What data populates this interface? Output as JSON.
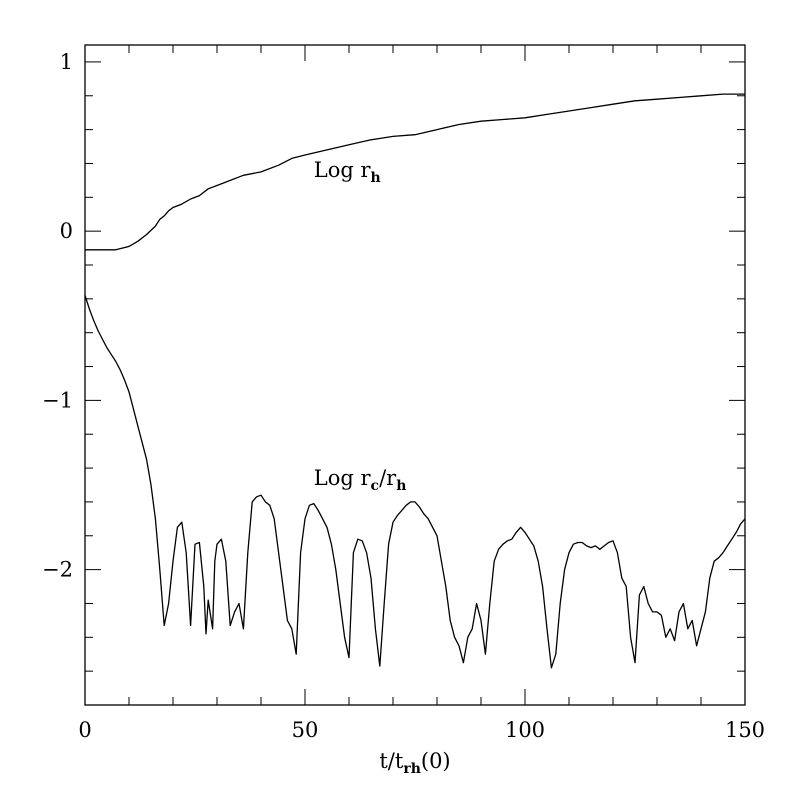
{
  "chart_data": {
    "type": "line",
    "title": "",
    "xlabel": {
      "main": "t/t",
      "sub": "rh",
      "tail": "(0)"
    },
    "ylabel": "",
    "xlim": [
      0,
      150
    ],
    "ylim": [
      -2.8,
      1.1
    ],
    "x_ticks": [
      0,
      50,
      100,
      150
    ],
    "x_tick_labels": [
      "0",
      "50",
      "100",
      "150"
    ],
    "y_ticks": [
      -2,
      -1,
      0,
      1
    ],
    "y_tick_labels": [
      "−2",
      "−1",
      "0",
      "1"
    ],
    "x_minor_step": 10,
    "y_minor_step": 0.2,
    "grid": false,
    "legend": "none",
    "series": [
      {
        "label": {
          "main": "Log r",
          "sub": "h"
        },
        "label_at": [
          52,
          0.32
        ],
        "points": [
          [
            0,
            -0.11
          ],
          [
            4,
            -0.11
          ],
          [
            7,
            -0.11
          ],
          [
            10,
            -0.09
          ],
          [
            12,
            -0.06
          ],
          [
            14,
            -0.02
          ],
          [
            16,
            0.03
          ],
          [
            17,
            0.07
          ],
          [
            18,
            0.09
          ],
          [
            19,
            0.12
          ],
          [
            20,
            0.14
          ],
          [
            22,
            0.16
          ],
          [
            24,
            0.19
          ],
          [
            26,
            0.21
          ],
          [
            28,
            0.25
          ],
          [
            30,
            0.27
          ],
          [
            33,
            0.3
          ],
          [
            36,
            0.33
          ],
          [
            40,
            0.35
          ],
          [
            44,
            0.39
          ],
          [
            47,
            0.43
          ],
          [
            50,
            0.45
          ],
          [
            55,
            0.48
          ],
          [
            60,
            0.51
          ],
          [
            65,
            0.54
          ],
          [
            70,
            0.56
          ],
          [
            75,
            0.57
          ],
          [
            80,
            0.6
          ],
          [
            85,
            0.63
          ],
          [
            90,
            0.65
          ],
          [
            95,
            0.66
          ],
          [
            100,
            0.67
          ],
          [
            105,
            0.69
          ],
          [
            110,
            0.71
          ],
          [
            115,
            0.73
          ],
          [
            120,
            0.75
          ],
          [
            125,
            0.77
          ],
          [
            130,
            0.78
          ],
          [
            135,
            0.79
          ],
          [
            140,
            0.8
          ],
          [
            145,
            0.81
          ],
          [
            150,
            0.81
          ]
        ]
      },
      {
        "label": {
          "main": "Log r",
          "sub": "c",
          "mid": "/r",
          "sub2": "h"
        },
        "label_at": [
          52,
          -1.5
        ],
        "points": [
          [
            0,
            -0.38
          ],
          [
            1,
            -0.46
          ],
          [
            2,
            -0.53
          ],
          [
            3,
            -0.59
          ],
          [
            4,
            -0.64
          ],
          [
            5,
            -0.69
          ],
          [
            6,
            -0.73
          ],
          [
            7,
            -0.77
          ],
          [
            8,
            -0.82
          ],
          [
            9,
            -0.88
          ],
          [
            10,
            -0.95
          ],
          [
            11,
            -1.05
          ],
          [
            12,
            -1.15
          ],
          [
            13,
            -1.25
          ],
          [
            14,
            -1.35
          ],
          [
            15,
            -1.5
          ],
          [
            16,
            -1.7
          ],
          [
            17,
            -2.0
          ],
          [
            18,
            -2.33
          ],
          [
            19,
            -2.2
          ],
          [
            20,
            -1.95
          ],
          [
            21,
            -1.75
          ],
          [
            22,
            -1.72
          ],
          [
            23,
            -1.9
          ],
          [
            24,
            -2.33
          ],
          [
            25,
            -1.85
          ],
          [
            26,
            -1.84
          ],
          [
            27,
            -2.1
          ],
          [
            27.5,
            -2.38
          ],
          [
            28,
            -2.18
          ],
          [
            29,
            -2.35
          ],
          [
            29.5,
            -1.95
          ],
          [
            30,
            -1.85
          ],
          [
            31,
            -1.82
          ],
          [
            32,
            -1.95
          ],
          [
            33,
            -2.33
          ],
          [
            34,
            -2.25
          ],
          [
            35,
            -2.2
          ],
          [
            36,
            -2.35
          ],
          [
            37,
            -1.9
          ],
          [
            38,
            -1.6
          ],
          [
            39,
            -1.57
          ],
          [
            40,
            -1.56
          ],
          [
            41,
            -1.6
          ],
          [
            42,
            -1.62
          ],
          [
            43,
            -1.7
          ],
          [
            44,
            -1.9
          ],
          [
            45,
            -2.1
          ],
          [
            46,
            -2.3
          ],
          [
            47,
            -2.35
          ],
          [
            48,
            -2.5
          ],
          [
            49,
            -1.9
          ],
          [
            50,
            -1.7
          ],
          [
            51,
            -1.62
          ],
          [
            52,
            -1.61
          ],
          [
            53,
            -1.65
          ],
          [
            54,
            -1.7
          ],
          [
            55,
            -1.75
          ],
          [
            56,
            -1.85
          ],
          [
            57,
            -2.0
          ],
          [
            58,
            -2.2
          ],
          [
            59,
            -2.4
          ],
          [
            60,
            -2.52
          ],
          [
            61,
            -1.9
          ],
          [
            62,
            -1.82
          ],
          [
            63,
            -1.83
          ],
          [
            64,
            -1.9
          ],
          [
            65,
            -2.05
          ],
          [
            66,
            -2.35
          ],
          [
            67,
            -2.57
          ],
          [
            68,
            -2.2
          ],
          [
            69,
            -1.85
          ],
          [
            70,
            -1.72
          ],
          [
            71,
            -1.68
          ],
          [
            72,
            -1.65
          ],
          [
            73,
            -1.62
          ],
          [
            74,
            -1.6
          ],
          [
            75,
            -1.6
          ],
          [
            76,
            -1.63
          ],
          [
            77,
            -1.67
          ],
          [
            78,
            -1.7
          ],
          [
            79,
            -1.75
          ],
          [
            80,
            -1.8
          ],
          [
            81,
            -1.95
          ],
          [
            82,
            -2.1
          ],
          [
            83,
            -2.3
          ],
          [
            84,
            -2.4
          ],
          [
            85,
            -2.45
          ],
          [
            86,
            -2.55
          ],
          [
            87,
            -2.4
          ],
          [
            88,
            -2.35
          ],
          [
            89,
            -2.2
          ],
          [
            90,
            -2.3
          ],
          [
            91,
            -2.5
          ],
          [
            92,
            -2.2
          ],
          [
            93,
            -1.95
          ],
          [
            94,
            -1.88
          ],
          [
            95,
            -1.85
          ],
          [
            96,
            -1.83
          ],
          [
            97,
            -1.82
          ],
          [
            98,
            -1.78
          ],
          [
            99,
            -1.75
          ],
          [
            100,
            -1.78
          ],
          [
            101,
            -1.82
          ],
          [
            102,
            -1.86
          ],
          [
            103,
            -1.95
          ],
          [
            104,
            -2.1
          ],
          [
            105,
            -2.35
          ],
          [
            106,
            -2.58
          ],
          [
            107,
            -2.5
          ],
          [
            108,
            -2.2
          ],
          [
            109,
            -2.0
          ],
          [
            110,
            -1.9
          ],
          [
            111,
            -1.85
          ],
          [
            112,
            -1.84
          ],
          [
            113,
            -1.84
          ],
          [
            114,
            -1.86
          ],
          [
            115,
            -1.87
          ],
          [
            116,
            -1.86
          ],
          [
            117,
            -1.88
          ],
          [
            118,
            -1.86
          ],
          [
            119,
            -1.84
          ],
          [
            120,
            -1.83
          ],
          [
            121,
            -1.9
          ],
          [
            122,
            -2.05
          ],
          [
            123,
            -2.1
          ],
          [
            124,
            -2.4
          ],
          [
            125,
            -2.55
          ],
          [
            126,
            -2.15
          ],
          [
            127,
            -2.1
          ],
          [
            128,
            -2.2
          ],
          [
            129,
            -2.25
          ],
          [
            130,
            -2.25
          ],
          [
            131,
            -2.27
          ],
          [
            132,
            -2.4
          ],
          [
            133,
            -2.35
          ],
          [
            134,
            -2.42
          ],
          [
            135,
            -2.25
          ],
          [
            136,
            -2.2
          ],
          [
            137,
            -2.35
          ],
          [
            138,
            -2.3
          ],
          [
            139,
            -2.45
          ],
          [
            140,
            -2.35
          ],
          [
            141,
            -2.25
          ],
          [
            142,
            -2.05
          ],
          [
            143,
            -1.95
          ],
          [
            144,
            -1.93
          ],
          [
            145,
            -1.9
          ],
          [
            146,
            -1.86
          ],
          [
            147,
            -1.82
          ],
          [
            148,
            -1.78
          ],
          [
            149,
            -1.73
          ],
          [
            150,
            -1.7
          ]
        ]
      }
    ]
  }
}
